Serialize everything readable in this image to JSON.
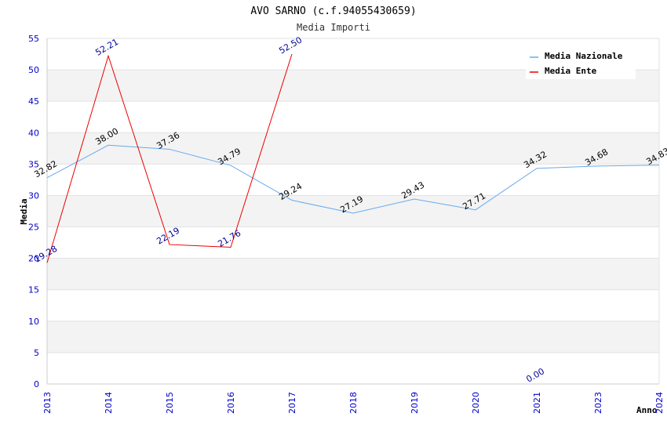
{
  "chart_data": {
    "type": "line",
    "title": "AVO SARNO (c.f.94055430659)",
    "subtitle": "Media Importi",
    "xlabel": "Anno",
    "ylabel": "Media",
    "ylim": [
      0,
      55
    ],
    "y_ticks": [
      0,
      5,
      10,
      15,
      20,
      25,
      30,
      35,
      40,
      45,
      50,
      55
    ],
    "categories": [
      "2013",
      "2014",
      "2015",
      "2016",
      "2017",
      "2018",
      "2019",
      "2020",
      "2021",
      "2023",
      "2024"
    ],
    "grid": true,
    "legend_position": "top-right",
    "series": [
      {
        "name": "Media Nazionale",
        "color": "#66aaee",
        "label_color": "#000000",
        "values": [
          32.82,
          38.0,
          37.36,
          34.79,
          29.24,
          27.19,
          29.43,
          27.71,
          34.32,
          34.68,
          34.83
        ],
        "labels": [
          "32.82",
          "38.00",
          "37.36",
          "34.79",
          "29.24",
          "27.19",
          "29.43",
          "27.71",
          "34.32",
          "34.68",
          "34.83"
        ]
      },
      {
        "name": "Media Ente",
        "color": "#ee0000",
        "label_color": "#000099",
        "values": [
          19.28,
          52.21,
          22.19,
          21.76,
          52.5,
          null,
          null,
          null,
          0.0,
          null,
          null
        ],
        "labels": [
          "19.28",
          "52.21",
          "22.19",
          "21.76",
          "52.50",
          null,
          null,
          null,
          "0.00",
          null,
          null
        ],
        "line_segments": [
          [
            0,
            4
          ]
        ]
      }
    ]
  }
}
